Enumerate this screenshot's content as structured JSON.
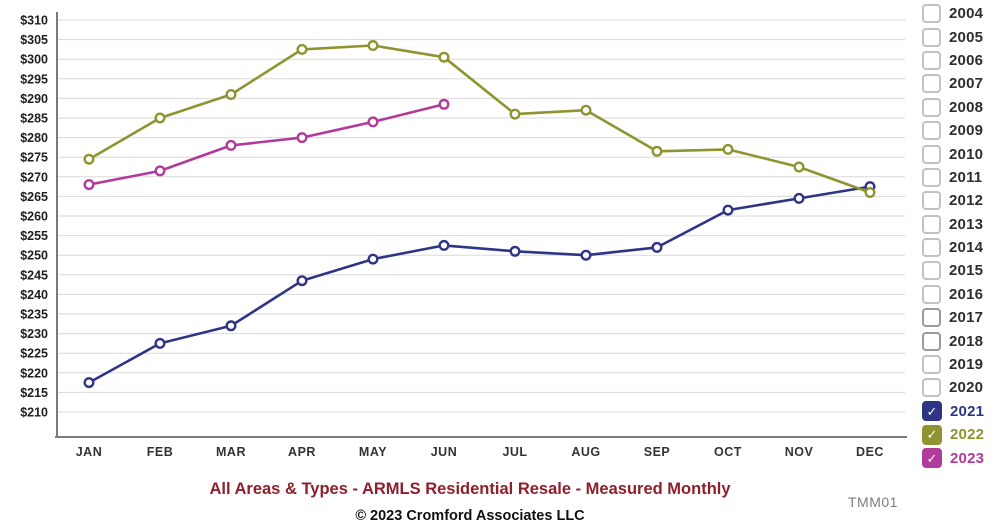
{
  "chart_data": {
    "type": "line",
    "title": "All Areas & Types - ARMLS Residential Resale - Measured Monthly",
    "xlabel": "",
    "ylabel": "",
    "y_tick_prefix": "$",
    "ylim": [
      210,
      310
    ],
    "y_tick_step": 5,
    "grid": "horizontal",
    "legend_position": "right",
    "categories": [
      "JAN",
      "FEB",
      "MAR",
      "APR",
      "MAY",
      "JUN",
      "JUL",
      "AUG",
      "SEP",
      "OCT",
      "NOV",
      "DEC"
    ],
    "series": [
      {
        "name": "2021",
        "color": "#2f3585",
        "values": [
          217.5,
          227.5,
          232,
          243.5,
          249,
          252.5,
          251,
          250,
          252,
          261.5,
          264.5,
          267.5
        ]
      },
      {
        "name": "2022",
        "color": "#8f9330",
        "values": [
          274.5,
          285,
          291,
          302.5,
          303.5,
          300.5,
          286,
          287,
          276.5,
          277,
          272.5,
          266
        ]
      },
      {
        "name": "2023",
        "color": "#b13b9b",
        "values": [
          268,
          271.5,
          278,
          280,
          284,
          288.5
        ]
      }
    ]
  },
  "legend": {
    "check_glyph": "✓",
    "years": [
      {
        "label": "2004",
        "checked": false
      },
      {
        "label": "2005",
        "checked": false
      },
      {
        "label": "2006",
        "checked": false
      },
      {
        "label": "2007",
        "checked": false
      },
      {
        "label": "2008",
        "checked": false
      },
      {
        "label": "2009",
        "checked": false
      },
      {
        "label": "2010",
        "checked": false
      },
      {
        "label": "2011",
        "checked": false
      },
      {
        "label": "2012",
        "checked": false
      },
      {
        "label": "2013",
        "checked": false
      },
      {
        "label": "2014",
        "checked": false
      },
      {
        "label": "2015",
        "checked": false
      },
      {
        "label": "2016",
        "checked": false
      },
      {
        "label": "2017",
        "checked": false,
        "emphasis": true
      },
      {
        "label": "2018",
        "checked": false,
        "emphasis": true
      },
      {
        "label": "2019",
        "checked": false
      },
      {
        "label": "2020",
        "checked": false
      },
      {
        "label": "2021",
        "checked": true,
        "color": "#2f3585"
      },
      {
        "label": "2022",
        "checked": true,
        "color": "#8f9330"
      },
      {
        "label": "2023",
        "checked": true,
        "color": "#b13b9b"
      }
    ]
  },
  "footer": {
    "title": "All Areas & Types - ARMLS Residential Resale - Measured Monthly",
    "title_color": "#8e1f2c",
    "copyright": "© 2023 Cromford Associates LLC",
    "code": "TMM01"
  },
  "colors": {
    "gridline": "#dadada",
    "axis": "#7a7a7a",
    "tick_label": "#1f1f1f",
    "month_label": "#333333"
  }
}
